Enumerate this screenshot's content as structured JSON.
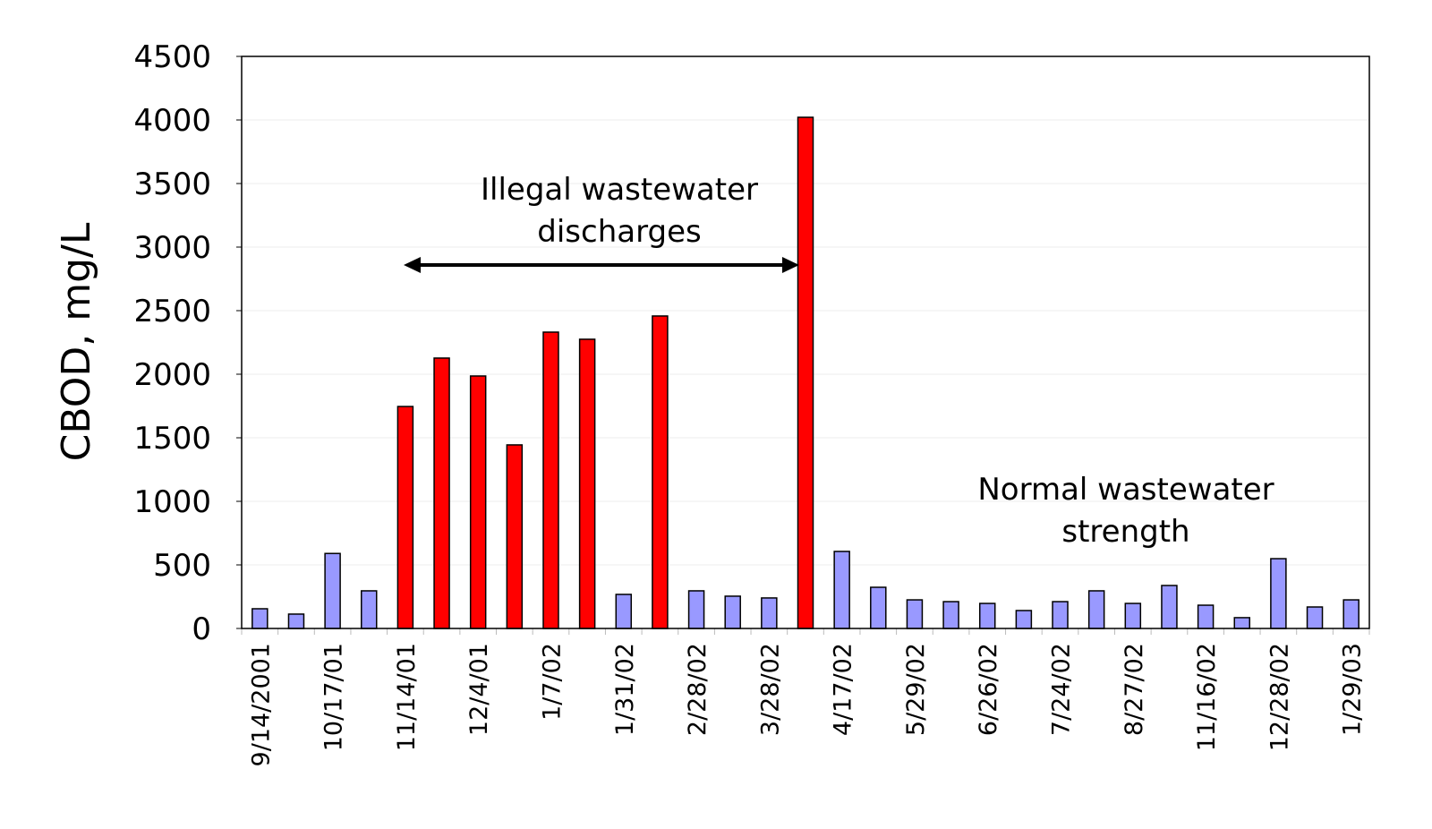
{
  "chart_data": {
    "type": "bar",
    "title": "",
    "xlabel": "",
    "ylabel": "CBOD, mg/L",
    "ylim": [
      0,
      4500
    ],
    "yticks": [
      0,
      500,
      1000,
      1500,
      2000,
      2500,
      3000,
      3500,
      4000,
      4500
    ],
    "grid": true,
    "categories": [
      "9/14/2001",
      "",
      "10/17/01",
      "",
      "11/14/01",
      "",
      "12/4/01",
      "",
      "1/7/02",
      "",
      "1/31/02",
      "",
      "2/28/02",
      "",
      "3/28/02",
      "",
      "4/17/02",
      "",
      "5/29/02",
      "",
      "6/26/02",
      "",
      "7/24/02",
      "",
      "8/27/02",
      "",
      "11/16/02",
      "",
      "12/28/02",
      "",
      "1/29/03"
    ],
    "values": [
      155,
      113,
      590,
      296,
      1746,
      2127,
      1986,
      1444,
      2331,
      2275,
      268,
      2458,
      296,
      254,
      240,
      4021,
      606,
      324,
      225,
      211,
      197,
      141,
      211,
      296,
      197,
      338,
      183,
      85,
      549,
      169,
      225
    ],
    "illegal": [
      false,
      false,
      false,
      false,
      true,
      true,
      true,
      true,
      true,
      true,
      false,
      true,
      false,
      false,
      false,
      true,
      false,
      false,
      false,
      false,
      false,
      false,
      false,
      false,
      false,
      false,
      false,
      false,
      false,
      false,
      false
    ],
    "colors": {
      "illegal": "#ff0000",
      "normal": "#9999ff",
      "outline": "#000000"
    },
    "annotations": {
      "illegal_line1": "Illegal wastewater",
      "illegal_line2": "discharges",
      "normal_line1": "Normal wastewater",
      "normal_line2": "strength"
    }
  }
}
